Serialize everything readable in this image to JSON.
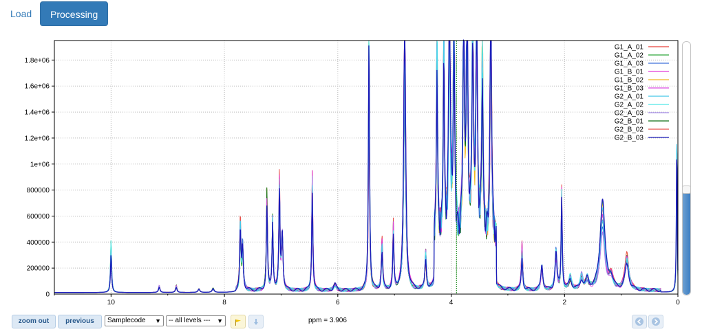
{
  "tabs": [
    {
      "label": "Load",
      "active": false
    },
    {
      "label": "Processing",
      "active": true
    }
  ],
  "toolbar": {
    "zoom_out_label": "zoom out",
    "previous_label": "previous",
    "sample_select": "Samplecode",
    "levels_select": "-- all levels ---",
    "ppm_readout": "ppm = 3.906",
    "flag_icon": "flag-icon",
    "download_icon": "download-icon",
    "prev_icon": "circle-left-icon",
    "next_icon": "circle-right-icon"
  },
  "slider": {
    "value_fraction": 0.42
  },
  "chart_data": {
    "type": "line",
    "title": "",
    "xlabel": "",
    "ylabel": "",
    "xlim": [
      11,
      0
    ],
    "ylim": [
      0,
      1950000
    ],
    "x_reversed": true,
    "x_ticks": [
      "10",
      "8",
      "6",
      "4",
      "2",
      "0"
    ],
    "y_ticks": [
      "200000",
      "400000",
      "600000",
      "800000",
      "1e+06",
      "1.2e+06",
      "1.4e+06",
      "1.6e+06",
      "1.8e+06"
    ],
    "grid": true,
    "legend_position": "top-right",
    "cursor_ppm": 3.906,
    "series": [
      {
        "name": "G1_A_01",
        "color": "#e8403a"
      },
      {
        "name": "G1_A_02",
        "color": "#2fa83a"
      },
      {
        "name": "G1_A_03",
        "color": "#3d6fd9"
      },
      {
        "name": "G1_B_01",
        "color": "#e23cd8"
      },
      {
        "name": "G1_B_02",
        "color": "#f0b620"
      },
      {
        "name": "G1_B_03",
        "color": "#d94ce0"
      },
      {
        "name": "G2_A_01",
        "color": "#44c8e8"
      },
      {
        "name": "G2_A_02",
        "color": "#50e6e6"
      },
      {
        "name": "G2_A_03",
        "color": "#a58be8"
      },
      {
        "name": "G2_B_01",
        "color": "#0f6e14"
      },
      {
        "name": "G2_B_02",
        "color": "#e8504a"
      },
      {
        "name": "G2_B_03",
        "color": "#1a1ab8"
      }
    ],
    "peaks": [
      {
        "ppm": 10.0,
        "height": 360000,
        "width": 0.012
      },
      {
        "ppm": 9.15,
        "height": 50000,
        "width": 0.015
      },
      {
        "ppm": 8.85,
        "height": 50000,
        "width": 0.015
      },
      {
        "ppm": 8.45,
        "height": 30000,
        "width": 0.02
      },
      {
        "ppm": 8.2,
        "height": 30000,
        "width": 0.02
      },
      {
        "ppm": 7.72,
        "height": 500000,
        "width": 0.012
      },
      {
        "ppm": 7.68,
        "height": 320000,
        "width": 0.015
      },
      {
        "ppm": 7.25,
        "height": 700000,
        "width": 0.012
      },
      {
        "ppm": 7.15,
        "height": 480000,
        "width": 0.012
      },
      {
        "ppm": 7.03,
        "height": 780000,
        "width": 0.012
      },
      {
        "ppm": 6.98,
        "height": 500000,
        "width": 0.015
      },
      {
        "ppm": 6.45,
        "height": 780000,
        "width": 0.012
      },
      {
        "ppm": 6.05,
        "height": 40000,
        "width": 0.03
      },
      {
        "ppm": 5.45,
        "height": 1900000,
        "width": 0.012
      },
      {
        "ppm": 5.22,
        "height": 350000,
        "width": 0.015
      },
      {
        "ppm": 5.02,
        "height": 440000,
        "width": 0.012
      },
      {
        "ppm": 4.82,
        "height": 1950000,
        "width": 0.02
      },
      {
        "ppm": 4.45,
        "height": 280000,
        "width": 0.015
      },
      {
        "ppm": 4.25,
        "height": 1600000,
        "width": 0.012
      },
      {
        "ppm": 4.13,
        "height": 1700000,
        "width": 0.012
      },
      {
        "ppm": 4.03,
        "height": 1950000,
        "width": 0.015
      },
      {
        "ppm": 3.95,
        "height": 1950000,
        "width": 0.015
      },
      {
        "ppm": 3.78,
        "height": 1950000,
        "width": 0.015
      },
      {
        "ppm": 3.72,
        "height": 1950000,
        "width": 0.015
      },
      {
        "ppm": 3.62,
        "height": 1950000,
        "width": 0.015
      },
      {
        "ppm": 3.55,
        "height": 1950000,
        "width": 0.015
      },
      {
        "ppm": 3.45,
        "height": 1500000,
        "width": 0.015
      },
      {
        "ppm": 3.3,
        "height": 1950000,
        "width": 0.015
      },
      {
        "ppm": 2.75,
        "height": 330000,
        "width": 0.015
      },
      {
        "ppm": 2.4,
        "height": 200000,
        "width": 0.02
      },
      {
        "ppm": 2.15,
        "height": 280000,
        "width": 0.02
      },
      {
        "ppm": 2.05,
        "height": 700000,
        "width": 0.012
      },
      {
        "ppm": 1.9,
        "height": 90000,
        "width": 0.03
      },
      {
        "ppm": 1.7,
        "height": 100000,
        "width": 0.03
      },
      {
        "ppm": 1.6,
        "height": 80000,
        "width": 0.03
      },
      {
        "ppm": 1.33,
        "height": 600000,
        "width": 0.05
      },
      {
        "ppm": 1.18,
        "height": 90000,
        "width": 0.04
      },
      {
        "ppm": 0.9,
        "height": 250000,
        "width": 0.04
      },
      {
        "ppm": 0.02,
        "height": 1150000,
        "width": 0.008
      }
    ]
  }
}
